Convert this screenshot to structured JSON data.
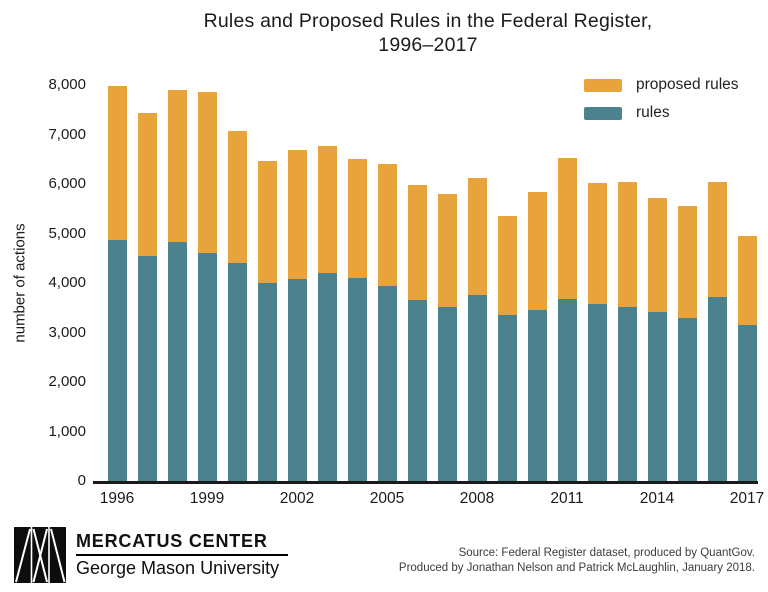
{
  "chart_data": {
    "type": "bar",
    "stacked": true,
    "title": "Rules and Proposed Rules in the Federal Register, 1996–2017",
    "title_line1": "Rules and Proposed Rules in the Federal Register,",
    "title_line2": "1996–2017",
    "xlabel": "",
    "ylabel": "number of actions",
    "ylim": [
      0,
      8000
    ],
    "grid": false,
    "legend_position": "top-right",
    "categories": [
      1996,
      1997,
      1998,
      1999,
      2000,
      2001,
      2002,
      2003,
      2004,
      2005,
      2006,
      2007,
      2008,
      2009,
      2010,
      2011,
      2012,
      2013,
      2014,
      2015,
      2016,
      2017
    ],
    "xtick_labels": [
      "1996",
      "1999",
      "2002",
      "2005",
      "2008",
      "2011",
      "2014",
      "2017"
    ],
    "ytick_values": [
      0,
      1000,
      2000,
      3000,
      4000,
      5000,
      6000,
      7000,
      8000
    ],
    "ytick_labels": [
      "0",
      "1,000",
      "2,000",
      "3,000",
      "4,000",
      "5,000",
      "6,000",
      "7,000",
      "8,000"
    ],
    "series": [
      {
        "name": "rules",
        "color": "#4C818E",
        "values": [
          4870,
          4550,
          4820,
          4600,
          4400,
          4000,
          4090,
          4200,
          4110,
          3930,
          3660,
          3520,
          3750,
          3360,
          3460,
          3680,
          3580,
          3510,
          3410,
          3290,
          3710,
          3160
        ]
      },
      {
        "name": "proposed rules",
        "color": "#E8A33D",
        "values": [
          3120,
          2890,
          3070,
          3250,
          2680,
          2460,
          2600,
          2570,
          2400,
          2480,
          2320,
          2270,
          2380,
          1990,
          2380,
          2850,
          2440,
          2530,
          2310,
          2260,
          2330,
          1790
        ]
      }
    ]
  },
  "footer": {
    "brand_name": "MERCATUS CENTER",
    "brand_sub": "George Mason University",
    "source_line1": "Source: Federal Register dataset, produced by QuantGov.",
    "source_line2": "Produced by Jonathan Nelson and Patrick McLaughlin, January 2018."
  }
}
